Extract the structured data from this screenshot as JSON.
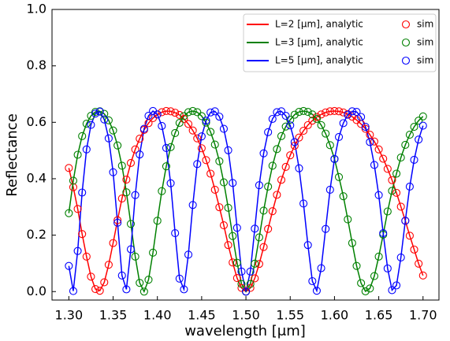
{
  "chart_data": {
    "type": "line",
    "xlabel": "wavelength [μm]",
    "ylabel": "Reflectance",
    "xlim": [
      1.281,
      1.718
    ],
    "ylim": [
      -0.03,
      1.0
    ],
    "xticks": [
      {
        "value": 1.3,
        "label": "1.30"
      },
      1.35,
      {
        "value": 1.4,
        "label": "1.40"
      },
      1.45,
      {
        "value": 1.5,
        "label": "1.50"
      },
      1.55,
      {
        "value": 1.6,
        "label": "1.60"
      },
      1.65,
      {
        "value": 1.7,
        "label": "1.70"
      }
    ],
    "yticks": [
      {
        "value": 0,
        "label": "0.0"
      },
      0.2,
      0.4,
      0.6,
      0.8,
      {
        "value": 1,
        "label": "1.0"
      }
    ],
    "legend": "upper right",
    "legend_columns": 2,
    "x": [
      1.3,
      1.305,
      1.31,
      1.315,
      1.32,
      1.325,
      1.33,
      1.335,
      1.34,
      1.345,
      1.35,
      1.355,
      1.36,
      1.365,
      1.37,
      1.375,
      1.38,
      1.385,
      1.39,
      1.395,
      1.4,
      1.405,
      1.41,
      1.415,
      1.42,
      1.425,
      1.43,
      1.435,
      1.44,
      1.445,
      1.45,
      1.455,
      1.46,
      1.465,
      1.47,
      1.475,
      1.48,
      1.485,
      1.49,
      1.495,
      1.5,
      1.505,
      1.51,
      1.515,
      1.52,
      1.525,
      1.53,
      1.535,
      1.54,
      1.545,
      1.55,
      1.555,
      1.56,
      1.565,
      1.57,
      1.575,
      1.58,
      1.585,
      1.59,
      1.595,
      1.6,
      1.605,
      1.61,
      1.615,
      1.62,
      1.625,
      1.63,
      1.635,
      1.64,
      1.645,
      1.65,
      1.655,
      1.66,
      1.665,
      1.67,
      1.675,
      1.68,
      1.685,
      1.69,
      1.695,
      1.7
    ],
    "series": [
      {
        "name": "L=2 [μm], analytic",
        "color": "#ff0000",
        "style": "line",
        "values": [
          0.438,
          0.37,
          0.293,
          0.204,
          0.124,
          0.053,
          0.009,
          0.003,
          0.033,
          0.095,
          0.172,
          0.253,
          0.33,
          0.397,
          0.456,
          0.504,
          0.542,
          0.573,
          0.597,
          0.615,
          0.628,
          0.636,
          0.64,
          0.639,
          0.634,
          0.626,
          0.612,
          0.594,
          0.571,
          0.543,
          0.508,
          0.466,
          0.418,
          0.361,
          0.299,
          0.235,
          0.165,
          0.103,
          0.048,
          0.013,
          0,
          0.013,
          0.047,
          0.098,
          0.158,
          0.222,
          0.285,
          0.343,
          0.396,
          0.442,
          0.483,
          0.517,
          0.546,
          0.57,
          0.59,
          0.606,
          0.619,
          0.628,
          0.635,
          0.639,
          0.64,
          0.639,
          0.635,
          0.629,
          0.62,
          0.608,
          0.594,
          0.577,
          0.556,
          0.532,
          0.504,
          0.471,
          0.435,
          0.395,
          0.35,
          0.301,
          0.251,
          0.198,
          0.149,
          0.099,
          0.057
        ]
      },
      {
        "name": "L=3 [μm], analytic",
        "color": "#008000",
        "style": "line",
        "values": [
          0.278,
          0.393,
          0.485,
          0.551,
          0.595,
          0.623,
          0.637,
          0.639,
          0.63,
          0.607,
          0.571,
          0.518,
          0.446,
          0.352,
          0.24,
          0.124,
          0.031,
          0,
          0.042,
          0.138,
          0.251,
          0.356,
          0.444,
          0.512,
          0.562,
          0.598,
          0.622,
          0.636,
          0.64,
          0.636,
          0.622,
          0.599,
          0.566,
          0.521,
          0.462,
          0.387,
          0.297,
          0.197,
          0.102,
          0.027,
          0,
          0.027,
          0.099,
          0.192,
          0.287,
          0.372,
          0.446,
          0.505,
          0.551,
          0.585,
          0.609,
          0.627,
          0.637,
          0.64,
          0.637,
          0.628,
          0.612,
          0.59,
          0.56,
          0.519,
          0.47,
          0.406,
          0.338,
          0.256,
          0.172,
          0.091,
          0.03,
          0.001,
          0.011,
          0.055,
          0.124,
          0.202,
          0.284,
          0.357,
          0.418,
          0.475,
          0.52,
          0.556,
          0.584,
          0.606,
          0.621
        ]
      },
      {
        "name": "L=5 [μm], analytic",
        "color": "#0000ff",
        "style": "line",
        "values": [
          0.091,
          0.002,
          0.144,
          0.351,
          0.504,
          0.591,
          0.631,
          0.638,
          0.61,
          0.543,
          0.423,
          0.244,
          0.057,
          0.008,
          0.15,
          0.342,
          0.486,
          0.577,
          0.623,
          0.64,
          0.628,
          0.587,
          0.509,
          0.384,
          0.207,
          0.046,
          0.008,
          0.131,
          0.307,
          0.452,
          0.55,
          0.606,
          0.635,
          0.639,
          0.62,
          0.577,
          0.501,
          0.385,
          0.226,
          0.071,
          0,
          0.071,
          0.223,
          0.377,
          0.49,
          0.565,
          0.612,
          0.636,
          0.639,
          0.623,
          0.589,
          0.53,
          0.437,
          0.312,
          0.165,
          0.037,
          0.003,
          0.083,
          0.222,
          0.361,
          0.47,
          0.548,
          0.597,
          0.627,
          0.639,
          0.637,
          0.619,
          0.584,
          0.53,
          0.449,
          0.342,
          0.207,
          0.082,
          0.005,
          0.022,
          0.121,
          0.251,
          0.372,
          0.467,
          0.539,
          0.588
        ]
      },
      {
        "name": "sim",
        "color": "#ff0000",
        "style": "marker",
        "values": [
          0.438,
          0.37,
          0.293,
          0.204,
          0.124,
          0.053,
          0.009,
          0.003,
          0.033,
          0.095,
          0.172,
          0.253,
          0.33,
          0.397,
          0.456,
          0.504,
          0.542,
          0.573,
          0.597,
          0.615,
          0.628,
          0.636,
          0.64,
          0.639,
          0.634,
          0.626,
          0.612,
          0.594,
          0.571,
          0.543,
          0.508,
          0.466,
          0.418,
          0.361,
          0.299,
          0.235,
          0.165,
          0.103,
          0.048,
          0.013,
          0,
          0.013,
          0.047,
          0.098,
          0.158,
          0.222,
          0.285,
          0.343,
          0.396,
          0.442,
          0.483,
          0.517,
          0.546,
          0.57,
          0.59,
          0.606,
          0.619,
          0.628,
          0.635,
          0.639,
          0.64,
          0.639,
          0.635,
          0.629,
          0.62,
          0.608,
          0.594,
          0.577,
          0.556,
          0.532,
          0.504,
          0.471,
          0.435,
          0.395,
          0.35,
          0.301,
          0.251,
          0.198,
          0.149,
          0.099,
          0.057
        ]
      },
      {
        "name": "sim",
        "color": "#008000",
        "style": "marker",
        "values": [
          0.278,
          0.393,
          0.485,
          0.551,
          0.595,
          0.623,
          0.637,
          0.639,
          0.63,
          0.607,
          0.571,
          0.518,
          0.446,
          0.352,
          0.24,
          0.124,
          0.031,
          0,
          0.042,
          0.138,
          0.251,
          0.356,
          0.444,
          0.512,
          0.562,
          0.598,
          0.622,
          0.636,
          0.64,
          0.636,
          0.622,
          0.599,
          0.566,
          0.521,
          0.462,
          0.387,
          0.297,
          0.197,
          0.102,
          0.027,
          0,
          0.027,
          0.099,
          0.192,
          0.287,
          0.372,
          0.446,
          0.505,
          0.551,
          0.585,
          0.609,
          0.627,
          0.637,
          0.64,
          0.637,
          0.628,
          0.612,
          0.59,
          0.56,
          0.519,
          0.47,
          0.406,
          0.338,
          0.256,
          0.172,
          0.091,
          0.03,
          0.001,
          0.011,
          0.055,
          0.124,
          0.202,
          0.284,
          0.357,
          0.418,
          0.475,
          0.52,
          0.556,
          0.584,
          0.606,
          0.621
        ]
      },
      {
        "name": "sim",
        "color": "#0000ff",
        "style": "marker",
        "values": [
          0.091,
          0.002,
          0.144,
          0.351,
          0.504,
          0.591,
          0.631,
          0.638,
          0.61,
          0.543,
          0.423,
          0.244,
          0.057,
          0.008,
          0.15,
          0.342,
          0.486,
          0.577,
          0.623,
          0.64,
          0.628,
          0.587,
          0.509,
          0.384,
          0.207,
          0.046,
          0.008,
          0.131,
          0.307,
          0.452,
          0.55,
          0.606,
          0.635,
          0.639,
          0.62,
          0.577,
          0.501,
          0.385,
          0.226,
          0.071,
          0,
          0.071,
          0.223,
          0.377,
          0.49,
          0.565,
          0.612,
          0.636,
          0.639,
          0.623,
          0.589,
          0.53,
          0.437,
          0.312,
          0.165,
          0.037,
          0.003,
          0.083,
          0.222,
          0.361,
          0.47,
          0.548,
          0.597,
          0.627,
          0.639,
          0.637,
          0.619,
          0.584,
          0.53,
          0.449,
          0.342,
          0.207,
          0.082,
          0.005,
          0.022,
          0.121,
          0.251,
          0.372,
          0.467,
          0.539,
          0.588
        ]
      }
    ]
  }
}
